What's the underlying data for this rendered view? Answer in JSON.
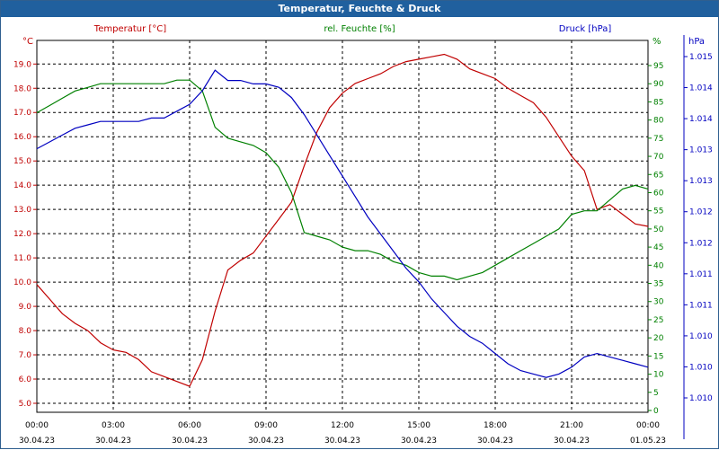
{
  "window": {
    "title": "Temperatur, Feuchte & Druck"
  },
  "chart_data": {
    "type": "line",
    "x_start": "2023-04-30 00:00",
    "x_end": "2023-05-01 00:00",
    "x_ticks": [
      {
        "time": "00:00",
        "date": "30.04.23"
      },
      {
        "time": "03:00",
        "date": "30.04.23"
      },
      {
        "time": "06:00",
        "date": "30.04.23"
      },
      {
        "time": "09:00",
        "date": "30.04.23"
      },
      {
        "time": "12:00",
        "date": "30.04.23"
      },
      {
        "time": "15:00",
        "date": "30.04.23"
      },
      {
        "time": "18:00",
        "date": "30.04.23"
      },
      {
        "time": "21:00",
        "date": "30.04.23"
      },
      {
        "time": "00:00",
        "date": "01.05.23"
      }
    ],
    "grid": true,
    "axes": {
      "left": {
        "label": "Temperatur [°C]",
        "unit": "°C",
        "color": "#c00000",
        "ylim": [
          5.0,
          20.0
        ],
        "ticks": [
          "5.0",
          "6.0",
          "7.0",
          "8.0",
          "9.0",
          "10.0",
          "11.0",
          "12.0",
          "13.0",
          "14.0",
          "15.0",
          "16.0",
          "17.0",
          "18.0",
          "19.0"
        ]
      },
      "right1": {
        "label": "rel. Feuchte [%]",
        "unit": "%",
        "color": "#008000",
        "ylim": [
          0,
          95
        ],
        "ticks": [
          "0",
          "5",
          "10",
          "15",
          "20",
          "25",
          "30",
          "35",
          "40",
          "45",
          "50",
          "55",
          "60",
          "65",
          "70",
          "75",
          "80",
          "85",
          "90",
          "95"
        ]
      },
      "right2": {
        "label": "Druck [hPa]",
        "unit": "hPa",
        "color": "#0000c0",
        "ticks": [
          "1.010",
          "1.010",
          "1.010",
          "1.011",
          "1.011",
          "1.012",
          "1.012",
          "1.013",
          "1.013",
          "1.014",
          "1.014",
          "1.015"
        ]
      }
    },
    "series": [
      {
        "name": "Temperatur [°C]",
        "axis": "left",
        "color": "#c00000",
        "x_hours": [
          0,
          0.5,
          1,
          1.5,
          2,
          2.5,
          3,
          3.5,
          4,
          4.5,
          5,
          5.5,
          6,
          6.5,
          7,
          7.5,
          8,
          8.5,
          9,
          9.5,
          10,
          10.5,
          11,
          11.5,
          12,
          12.5,
          13,
          13.5,
          14,
          14.5,
          15,
          15.5,
          16,
          16.5,
          17,
          17.5,
          18,
          18.5,
          19,
          19.5,
          20,
          20.5,
          21,
          21.5,
          22,
          22.5,
          23,
          23.5,
          24
        ],
        "values": [
          9.9,
          9.3,
          8.7,
          8.3,
          8.0,
          7.5,
          7.2,
          7.1,
          6.8,
          6.3,
          6.1,
          5.9,
          5.7,
          6.8,
          8.8,
          10.5,
          10.9,
          11.2,
          11.9,
          12.6,
          13.3,
          14.8,
          16.2,
          17.2,
          17.8,
          18.2,
          18.4,
          18.6,
          18.9,
          19.1,
          19.2,
          19.3,
          19.4,
          19.2,
          18.8,
          18.6,
          18.4,
          18.0,
          17.7,
          17.4,
          16.8,
          16.0,
          15.2,
          14.6,
          13.0,
          13.2,
          12.8,
          12.4,
          12.3
        ]
      },
      {
        "name": "rel. Feuchte [%]",
        "axis": "right1",
        "color": "#008000",
        "x_hours": [
          0,
          0.5,
          1,
          1.5,
          2,
          2.5,
          3,
          3.5,
          4,
          4.5,
          5,
          5.5,
          6,
          6.5,
          7,
          7.5,
          8,
          8.5,
          9,
          9.5,
          10,
          10.5,
          11,
          11.5,
          12,
          12.5,
          13,
          13.5,
          14,
          14.5,
          15,
          15.5,
          16,
          16.5,
          17,
          17.5,
          18,
          18.5,
          19,
          19.5,
          20,
          20.5,
          21,
          21.5,
          22,
          22.5,
          23,
          23.5,
          24
        ],
        "values": [
          82,
          84,
          86,
          88,
          89,
          90,
          90,
          90,
          90,
          90,
          90,
          91,
          91,
          88,
          78,
          75,
          74,
          73,
          71,
          67,
          60,
          49,
          48,
          47,
          45,
          44,
          44,
          43,
          41,
          40,
          38,
          37,
          37,
          36,
          37,
          38,
          40,
          42,
          44,
          46,
          48,
          50,
          54,
          55,
          55,
          58,
          61,
          62,
          61
        ]
      },
      {
        "name": "Druck [hPa]",
        "axis": "right2",
        "color": "#0000c0",
        "x_hours": [
          0,
          0.5,
          1,
          1.5,
          2,
          2.5,
          3,
          3.5,
          4,
          4.5,
          5,
          5.5,
          6,
          6.5,
          7,
          7.5,
          8,
          8.5,
          9,
          9.5,
          10,
          10.5,
          11,
          11.5,
          12,
          12.5,
          13,
          13.5,
          14,
          14.5,
          15,
          15.5,
          16,
          16.5,
          17,
          17.5,
          18,
          18.5,
          19,
          19.5,
          20,
          20.5,
          21,
          21.5,
          22,
          22.5,
          23,
          23.5,
          24
        ],
        "values": [
          73,
          75,
          77,
          79,
          80,
          81,
          81,
          81,
          81,
          82,
          82,
          84,
          86,
          90,
          96,
          93,
          93,
          92,
          92,
          91,
          88,
          83,
          77,
          71,
          65,
          59,
          53,
          48,
          43,
          38,
          34,
          29,
          25,
          21,
          18,
          16,
          13,
          10,
          8,
          7,
          6,
          7,
          9,
          12,
          13,
          12,
          11,
          10,
          9
        ]
      }
    ]
  }
}
